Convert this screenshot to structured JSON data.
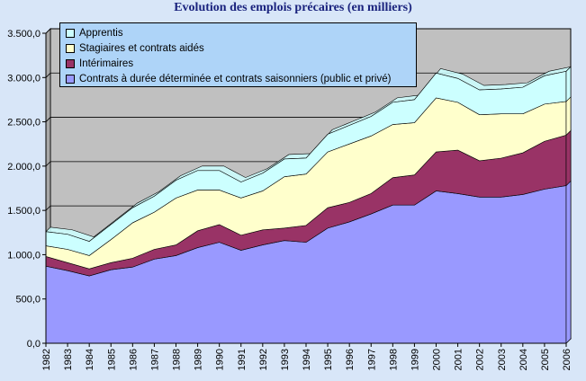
{
  "chart_data": {
    "type": "area",
    "stacked": true,
    "title": "Evolution des emplois précaires (en milliers)",
    "xlabel": "",
    "ylabel": "",
    "ylim": [
      0,
      3500
    ],
    "yticks": [
      "0,0",
      "500,0",
      "1.000,0",
      "1.500,0",
      "2.000,0",
      "2.500,0",
      "3.000,0",
      "3.500,0"
    ],
    "grid": true,
    "legend_position": "top-left",
    "categories": [
      "1982",
      "1983",
      "1984",
      "1985",
      "1986",
      "1987",
      "1988",
      "1989",
      "1990",
      "1991",
      "1992",
      "1993",
      "1994",
      "1995",
      "1996",
      "1997",
      "1998",
      "1999",
      "2000",
      "2001",
      "2002",
      "2003",
      "2004",
      "2005",
      "2006"
    ],
    "series": [
      {
        "name": "Contrats à durée déterminée et contrats saisonniers (public et privé)",
        "color": "#9999ff",
        "values": [
          870,
          820,
          760,
          830,
          860,
          950,
          990,
          1080,
          1140,
          1050,
          1110,
          1160,
          1140,
          1300,
          1370,
          1460,
          1560,
          1560,
          1720,
          1690,
          1650,
          1650,
          1680,
          1740,
          1780
        ]
      },
      {
        "name": "Intérimaires",
        "color": "#993366",
        "values": [
          110,
          90,
          80,
          80,
          100,
          110,
          120,
          190,
          200,
          170,
          170,
          140,
          190,
          230,
          220,
          230,
          310,
          340,
          440,
          490,
          410,
          440,
          470,
          540,
          570
        ]
      },
      {
        "name": "Stagiaires et contrats aidés",
        "color": "#ffffcc",
        "values": [
          120,
          150,
          150,
          260,
          400,
          420,
          530,
          460,
          390,
          420,
          440,
          580,
          580,
          630,
          660,
          650,
          600,
          590,
          610,
          540,
          520,
          500,
          440,
          420,
          380
        ]
      },
      {
        "name": "Apprentis",
        "color": "#ccffff",
        "values": [
          160,
          170,
          160,
          170,
          170,
          180,
          200,
          220,
          220,
          180,
          200,
          200,
          180,
          200,
          210,
          220,
          250,
          260,
          280,
          270,
          280,
          280,
          300,
          320,
          340
        ]
      }
    ]
  }
}
